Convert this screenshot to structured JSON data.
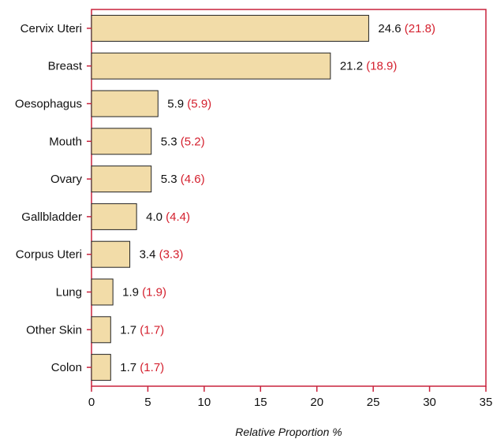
{
  "chart_data": {
    "type": "bar",
    "orientation": "horizontal",
    "categories": [
      "Cervix Uteri",
      "Breast",
      "Oesophagus",
      "Mouth",
      "Ovary",
      "Gallbladder",
      "Corpus Uteri",
      "Lung",
      "Other Skin",
      "Colon"
    ],
    "series": [
      {
        "values": [
          24.6,
          21.2,
          5.9,
          5.3,
          5.3,
          4.0,
          3.4,
          1.9,
          1.7,
          1.7
        ]
      },
      {
        "values": [
          21.8,
          18.9,
          5.9,
          5.2,
          4.6,
          4.4,
          3.3,
          1.9,
          1.7,
          1.7
        ]
      }
    ],
    "value_labels": [
      "24.6",
      "21.2",
      "5.9",
      "5.3",
      "5.3",
      "4.0",
      "3.4",
      "1.9",
      "1.7",
      "1.7"
    ],
    "secondary_labels": [
      "(21.8)",
      "(18.9)",
      "(5.9)",
      "(5.2)",
      "(4.6)",
      "(4.4)",
      "(3.3)",
      "(1.9)",
      "(1.7)",
      "(1.7)"
    ],
    "xlabel": "Relative Proportion %",
    "xlim": [
      0,
      35
    ],
    "xticks": [
      "0",
      "5",
      "10",
      "15",
      "20",
      "25",
      "30",
      "35"
    ],
    "grid": false,
    "legend": "none",
    "colors": {
      "bar_fill": "#f2dca8",
      "bar_stroke": "#222222",
      "frame": "#c8223c",
      "primary_label": "#111111",
      "secondary_label": "#d4202e"
    }
  }
}
